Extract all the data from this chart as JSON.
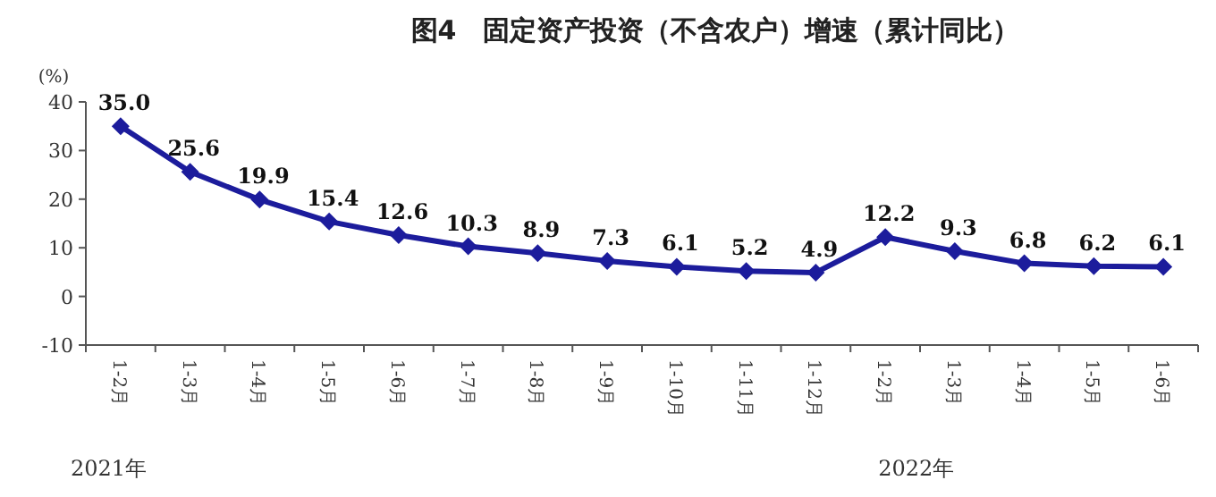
{
  "chart_data": {
    "type": "line",
    "title": "图4　固定资产投资（不含农户）增速（累计同比）",
    "ylabel": "(%)",
    "categories": [
      "1-2月",
      "1-3月",
      "1-4月",
      "1-5月",
      "1-6月",
      "1-7月",
      "1-8月",
      "1-9月",
      "1-10月",
      "1-11月",
      "1-12月",
      "1-2月",
      "1-3月",
      "1-4月",
      "1-5月",
      "1-6月"
    ],
    "values": [
      35.0,
      25.6,
      19.9,
      15.4,
      12.6,
      10.3,
      8.9,
      7.3,
      6.1,
      5.2,
      4.9,
      12.2,
      9.3,
      6.8,
      6.2,
      6.1
    ],
    "value_labels": [
      "35.0",
      "25.6",
      "19.9",
      "15.4",
      "12.6",
      "10.3",
      "8.9",
      "7.3",
      "6.1",
      "5.2",
      "4.9",
      "12.2",
      "9.3",
      "6.8",
      "6.2",
      "6.1"
    ],
    "color": "#1c1c9c",
    "marker": "diamond",
    "line_style": "solid",
    "ylim": [
      -10,
      40
    ],
    "yticks": [
      -10,
      0,
      10,
      20,
      30,
      40
    ],
    "annotations": [
      "2021年",
      "2022年"
    ]
  }
}
